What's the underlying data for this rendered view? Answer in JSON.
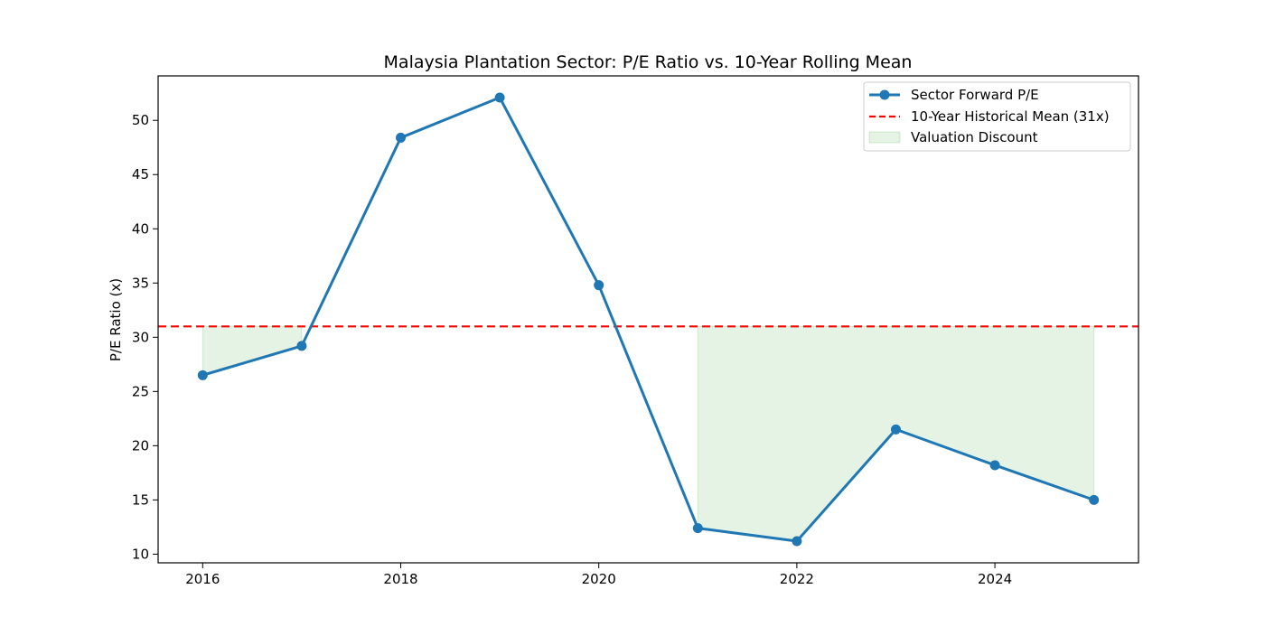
{
  "chart_data": {
    "type": "line",
    "title": "Malaysia Plantation Sector: P/E Ratio vs. 10-Year Rolling Mean",
    "xlabel": "",
    "ylabel": "P/E Ratio (x)",
    "x": [
      2016,
      2017,
      2018,
      2019,
      2020,
      2021,
      2022,
      2023,
      2024,
      2025
    ],
    "series": [
      {
        "name": "Sector Forward P/E",
        "color": "#1f77b4",
        "values": [
          26.5,
          29.2,
          48.4,
          52.1,
          34.8,
          12.4,
          11.2,
          21.5,
          18.2,
          15.0
        ]
      }
    ],
    "reference_line": {
      "name": "10-Year Historical Mean (31x)",
      "value": 31,
      "color": "#ff0000",
      "style": "dashed"
    },
    "fill": {
      "name": "Valuation Discount",
      "color": "#2ca02c",
      "condition": "below mean"
    },
    "xticks": [
      "2016",
      "2018",
      "2020",
      "2022",
      "2024"
    ],
    "yticks": [
      "10",
      "15",
      "20",
      "25",
      "30",
      "35",
      "40",
      "45",
      "50"
    ],
    "xlim": [
      2015.55,
      2025.45
    ],
    "ylim": [
      9.2,
      54.1
    ],
    "grid": false,
    "legend_position": "top-right"
  }
}
